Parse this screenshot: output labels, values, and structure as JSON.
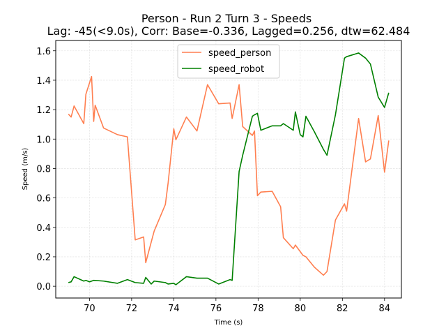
{
  "chart_data": {
    "type": "line",
    "title": "Person - Run 2 Turn 3 - Speeds",
    "subtitle": "Lag: -45(<9.0s), Corr: Base=-0.336, Lagged=0.256, dtw=62.484",
    "xlabel": "Time (s)",
    "ylabel": "Speed (m/s)",
    "xlim": [
      68.4,
      84.8
    ],
    "ylim": [
      -0.08,
      1.67
    ],
    "xticks": [
      70,
      72,
      74,
      76,
      78,
      80,
      82,
      84
    ],
    "yticks": [
      0.0,
      0.2,
      0.4,
      0.6,
      0.8,
      1.0,
      1.2,
      1.4,
      1.6
    ],
    "grid": true,
    "legend_position": "top-center",
    "series": [
      {
        "name": "speed_person",
        "color": "#FF7F50",
        "x": [
          69.0,
          69.13,
          69.27,
          69.73,
          69.83,
          70.1,
          70.2,
          70.27,
          70.67,
          71.33,
          71.8,
          72.17,
          72.57,
          72.67,
          72.93,
          73.07,
          73.6,
          73.73,
          74.0,
          74.1,
          74.6,
          75.1,
          75.6,
          76.13,
          76.67,
          76.77,
          77.1,
          77.27,
          77.73,
          77.83,
          77.97,
          78.13,
          78.67,
          79.07,
          79.2,
          79.67,
          79.77,
          80.13,
          80.27,
          80.67,
          81.1,
          81.27,
          81.67,
          82.1,
          82.2,
          82.77,
          83.1,
          83.33,
          83.7,
          84.0,
          84.2
        ],
        "values": [
          1.17,
          1.15,
          1.225,
          1.105,
          1.305,
          1.425,
          1.12,
          1.23,
          1.075,
          1.03,
          1.015,
          0.315,
          0.335,
          0.16,
          0.3,
          0.375,
          0.555,
          0.7,
          1.07,
          0.995,
          1.15,
          1.055,
          1.37,
          1.24,
          1.245,
          1.14,
          1.37,
          1.085,
          1.025,
          1.055,
          0.615,
          0.64,
          0.645,
          0.54,
          0.33,
          0.255,
          0.28,
          0.21,
          0.2,
          0.13,
          0.075,
          0.1,
          0.45,
          0.56,
          0.51,
          1.14,
          0.845,
          0.865,
          1.16,
          0.775,
          0.99
        ]
      },
      {
        "name": "speed_robot",
        "color": "#008000",
        "x": [
          69.0,
          69.13,
          69.27,
          69.73,
          69.83,
          70.0,
          70.2,
          70.67,
          71.33,
          71.8,
          72.17,
          72.57,
          72.67,
          72.93,
          73.07,
          73.6,
          73.73,
          74.0,
          74.1,
          74.6,
          75.1,
          75.6,
          76.13,
          76.67,
          76.77,
          77.1,
          77.27,
          77.73,
          77.83,
          77.97,
          78.13,
          78.67,
          79.07,
          79.2,
          79.67,
          79.77,
          80.0,
          80.13,
          80.27,
          80.67,
          81.1,
          81.27,
          81.67,
          82.1,
          82.2,
          82.77,
          83.1,
          83.33,
          83.7,
          84.0,
          84.2
        ],
        "values": [
          0.025,
          0.03,
          0.065,
          0.035,
          0.04,
          0.03,
          0.04,
          0.035,
          0.02,
          0.045,
          0.025,
          0.02,
          0.06,
          0.015,
          0.035,
          0.025,
          0.015,
          0.02,
          0.01,
          0.065,
          0.055,
          0.055,
          0.015,
          0.045,
          0.04,
          0.78,
          0.89,
          1.155,
          1.165,
          1.175,
          1.06,
          1.09,
          1.09,
          1.105,
          1.06,
          1.185,
          1.03,
          1.015,
          1.155,
          1.05,
          0.93,
          0.89,
          1.165,
          1.55,
          1.56,
          1.585,
          1.55,
          1.51,
          1.285,
          1.215,
          1.315
        ]
      }
    ]
  }
}
